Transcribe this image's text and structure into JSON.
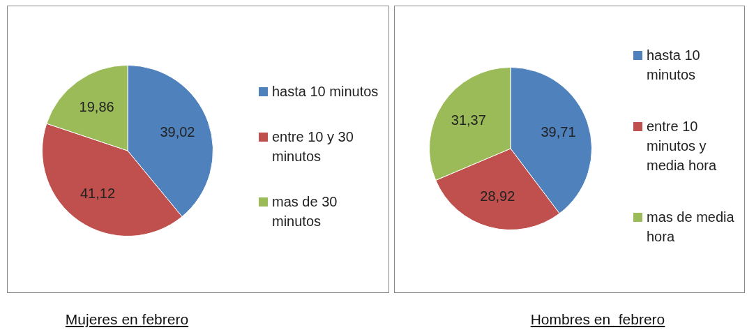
{
  "chart_data": [
    {
      "type": "pie",
      "title": "Mujeres en febrero",
      "categories": [
        "hasta 10 minutos",
        "entre 10 y 30 minutos",
        "mas de 30 minutos"
      ],
      "values": [
        39.02,
        41.12,
        19.86
      ],
      "value_labels": [
        "39,02",
        "41,12",
        "19,86"
      ],
      "colors": [
        "#4f81bd",
        "#c0504d",
        "#9bbb59"
      ],
      "legend": "right"
    },
    {
      "type": "pie",
      "title": "Hombres en  febrero",
      "categories": [
        "hasta 10 minutos",
        "entre 10 minutos y media hora",
        "mas de media hora"
      ],
      "values": [
        39.71,
        28.92,
        31.37
      ],
      "value_labels": [
        "39,71",
        "28,92",
        "31,37"
      ],
      "colors": [
        "#4f81bd",
        "#c0504d",
        "#9bbb59"
      ],
      "legend": "right"
    }
  ]
}
